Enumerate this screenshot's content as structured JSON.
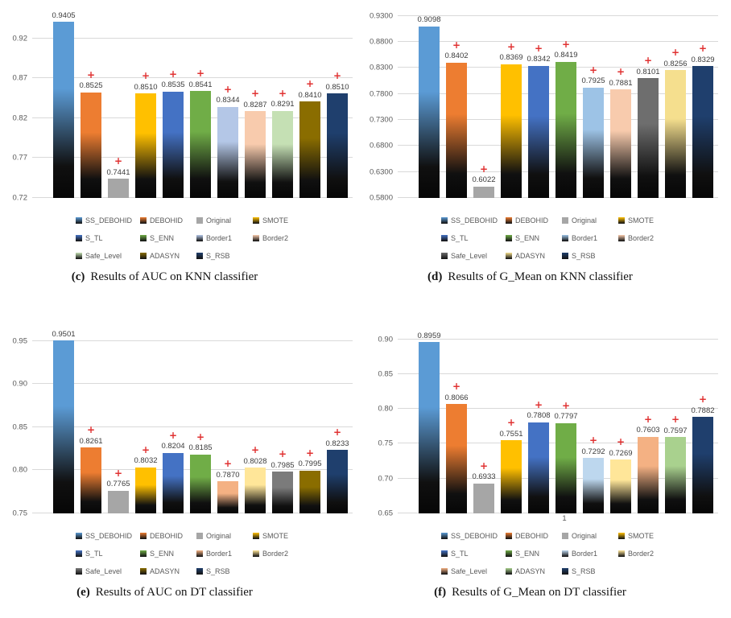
{
  "marker": {
    "symbol": "+",
    "color": "#e03131"
  },
  "chart_data": [
    {
      "id": "c",
      "type": "bar",
      "caption_tag": "(c)",
      "caption_text": "Results of AUC on KNN classifier",
      "categories": [
        "SS_DEBOHID",
        "DEBOHID",
        "Original",
        "SMOTE",
        "S_TL",
        "S_ENN",
        "Border1",
        "Border2",
        "Safe_Level",
        "ADASYN",
        "S_RSB"
      ],
      "values": [
        0.9405,
        0.8525,
        0.7441,
        0.851,
        0.8535,
        0.8541,
        0.8344,
        0.8287,
        0.8291,
        0.841,
        0.851
      ],
      "value_labels": [
        "0.9405",
        "0.8525",
        "0.7441",
        "0.8510",
        "0.8535",
        "0.8541",
        "0.8344",
        "0.8287",
        "0.8291",
        "0.8410",
        "0.8510"
      ],
      "bar_colors": [
        "#5B9BD5",
        "#ED7D31",
        "#A6A6A6",
        "#FFC000",
        "#4472C4",
        "#70AD47",
        "#B4C7E7",
        "#F8CBAD",
        "#C5E0B4",
        "#8A6D00",
        "#1F3F6D"
      ],
      "solid_bar_index": 2,
      "plus_markers": [
        false,
        true,
        true,
        true,
        true,
        true,
        true,
        true,
        true,
        true,
        true
      ],
      "xlabel": "",
      "ylim": [
        0.72,
        0.96
      ],
      "yticks": {
        "values": [
          0.72,
          0.77,
          0.82,
          0.87,
          0.92
        ],
        "labels": [
          "0.72",
          "0.77",
          "0.82",
          "0.87",
          "0.92"
        ]
      },
      "grid": "horizontal",
      "legend_position": "bottom"
    },
    {
      "id": "d",
      "type": "bar",
      "caption_tag": "(d)",
      "caption_text": "Results of G_Mean on KNN classifier",
      "categories": [
        "SS_DEBOHID",
        "DEBOHID",
        "Original",
        "SMOTE",
        "S_TL",
        "S_ENN",
        "Border1",
        "Border2",
        "Safe_Level",
        "ADASYN",
        "S_RSB"
      ],
      "values": [
        0.9098,
        0.8402,
        0.6022,
        0.8369,
        0.8342,
        0.8419,
        0.7925,
        0.7881,
        0.8101,
        0.8256,
        0.8329
      ],
      "value_labels": [
        "0.9098",
        "0.8402",
        "0.6022",
        "0.8369",
        "0.8342",
        "0.8419",
        "0.7925",
        "0.7881",
        "0.8101",
        "0.8256",
        "0.8329"
      ],
      "bar_colors": [
        "#5B9BD5",
        "#ED7D31",
        "#A6A6A6",
        "#FFC000",
        "#4472C4",
        "#70AD47",
        "#9DC3E6",
        "#F8CBAD",
        "#6E6E6E",
        "#F5DF8E",
        "#1F3F6D"
      ],
      "solid_bar_index": 2,
      "plus_markers": [
        false,
        true,
        true,
        true,
        true,
        true,
        true,
        true,
        true,
        true,
        true
      ],
      "xlabel": "",
      "ylim": [
        0.58,
        0.948
      ],
      "yticks": {
        "values": [
          0.58,
          0.63,
          0.68,
          0.73,
          0.78,
          0.83,
          0.88,
          0.93
        ],
        "labels": [
          "0.5800",
          "0.6300",
          "0.6800",
          "0.7300",
          "0.7800",
          "0.8300",
          "0.8800",
          "0.9300"
        ]
      },
      "grid": "horizontal",
      "legend_position": "bottom"
    },
    {
      "id": "e",
      "type": "bar",
      "caption_tag": "(e)",
      "caption_text": "Results of AUC on DT classifier",
      "categories": [
        "SS_DEBOHID",
        "DEBOHID",
        "Original",
        "SMOTE",
        "S_TL",
        "S_ENN",
        "Border1",
        "Border2",
        "Safe_Level",
        "ADASYN",
        "S_RSB"
      ],
      "values": [
        0.9501,
        0.8261,
        0.7765,
        0.8032,
        0.8204,
        0.8185,
        0.787,
        0.8028,
        0.7985,
        0.7995,
        0.8233
      ],
      "value_labels": [
        "0.9501",
        "0.8261",
        "0.7765",
        "0.8032",
        "0.8204",
        "0.8185",
        "0.7870",
        "0.8028",
        "0.7985",
        "0.7995",
        "0.8233"
      ],
      "bar_colors": [
        "#5B9BD5",
        "#ED7D31",
        "#A6A6A6",
        "#FFC000",
        "#4472C4",
        "#70AD47",
        "#F4B183",
        "#FFE699",
        "#7B7B7B",
        "#8A6D00",
        "#1F3F6D"
      ],
      "solid_bar_index": 2,
      "plus_markers": [
        false,
        true,
        true,
        true,
        true,
        true,
        true,
        true,
        true,
        true,
        true
      ],
      "xlabel": "",
      "ylim": [
        0.75,
        0.972
      ],
      "yticks": {
        "values": [
          0.75,
          0.8,
          0.85,
          0.9,
          0.95
        ],
        "labels": [
          "0.75",
          "0.80",
          "0.85",
          "0.90",
          "0.95"
        ]
      },
      "grid": "horizontal",
      "legend_position": "bottom"
    },
    {
      "id": "f",
      "type": "bar",
      "caption_tag": "(f)",
      "caption_text": "Results of G_Mean on DT classifier",
      "categories": [
        "SS_DEBOHID",
        "DEBOHID",
        "Original",
        "SMOTE",
        "S_TL",
        "S_ENN",
        "Border1",
        "Border2",
        "Safe_Level",
        "ADASYN",
        "S_RSB"
      ],
      "values": [
        0.8959,
        0.8066,
        0.6933,
        0.7551,
        0.7808,
        0.7797,
        0.7292,
        0.7269,
        0.7603,
        0.7597,
        0.7882
      ],
      "value_labels": [
        "0.8959",
        "0.8066",
        "0.6933",
        "0.7551",
        "0.7808",
        "0.7797",
        "0.7292",
        "0.7269",
        "0.7603",
        "0.7597",
        "0.7882"
      ],
      "bar_colors": [
        "#5B9BD5",
        "#ED7D31",
        "#A6A6A6",
        "#FFC000",
        "#4472C4",
        "#70AD47",
        "#BDD7EE",
        "#FFE699",
        "#F4B183",
        "#A9D18E",
        "#1F3F6D"
      ],
      "solid_bar_index": 2,
      "plus_markers": [
        false,
        true,
        true,
        true,
        true,
        true,
        true,
        true,
        true,
        true,
        true
      ],
      "xlabel": "1",
      "ylim": [
        0.65,
        0.925
      ],
      "yticks": {
        "values": [
          0.65,
          0.7,
          0.75,
          0.8,
          0.85,
          0.9
        ],
        "labels": [
          "0.65",
          "0.70",
          "0.75",
          "0.80",
          "0.85",
          "0.90"
        ]
      },
      "grid": "horizontal",
      "legend_position": "bottom"
    }
  ]
}
